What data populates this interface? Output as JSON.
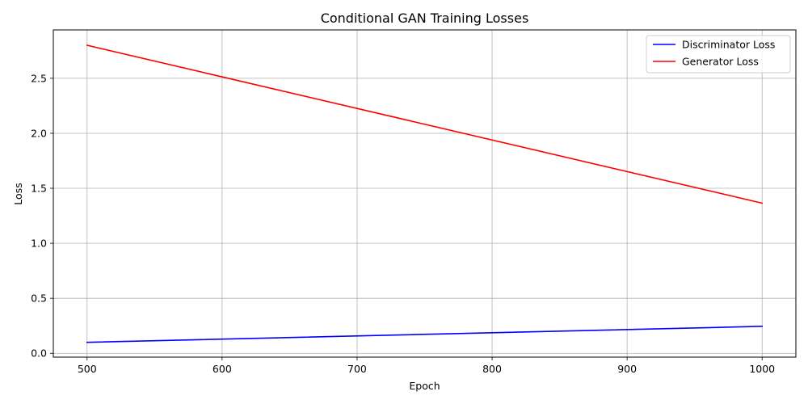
{
  "chart_data": {
    "type": "line",
    "title": "Conditional GAN Training Losses",
    "xlabel": "Epoch",
    "ylabel": "Loss",
    "xlim": [
      475,
      1025
    ],
    "ylim": [
      -0.035,
      2.94
    ],
    "xticks": [
      500,
      600,
      700,
      800,
      900,
      1000
    ],
    "xtick_labels": [
      "500",
      "600",
      "700",
      "800",
      "900",
      "1000"
    ],
    "yticks": [
      0.0,
      0.5,
      1.0,
      1.5,
      2.0,
      2.5
    ],
    "ytick_labels": [
      "0.0",
      "0.5",
      "1.0",
      "1.5",
      "2.0",
      "2.5"
    ],
    "grid": true,
    "legend_position": "top-right",
    "series": [
      {
        "name": "Discriminator Loss",
        "color": "#0000ff",
        "x": [
          500,
          1000
        ],
        "y": [
          0.1,
          0.245
        ]
      },
      {
        "name": "Generator Loss",
        "color": "#ff0000",
        "x": [
          500,
          1000
        ],
        "y": [
          2.8,
          1.365
        ]
      }
    ]
  }
}
